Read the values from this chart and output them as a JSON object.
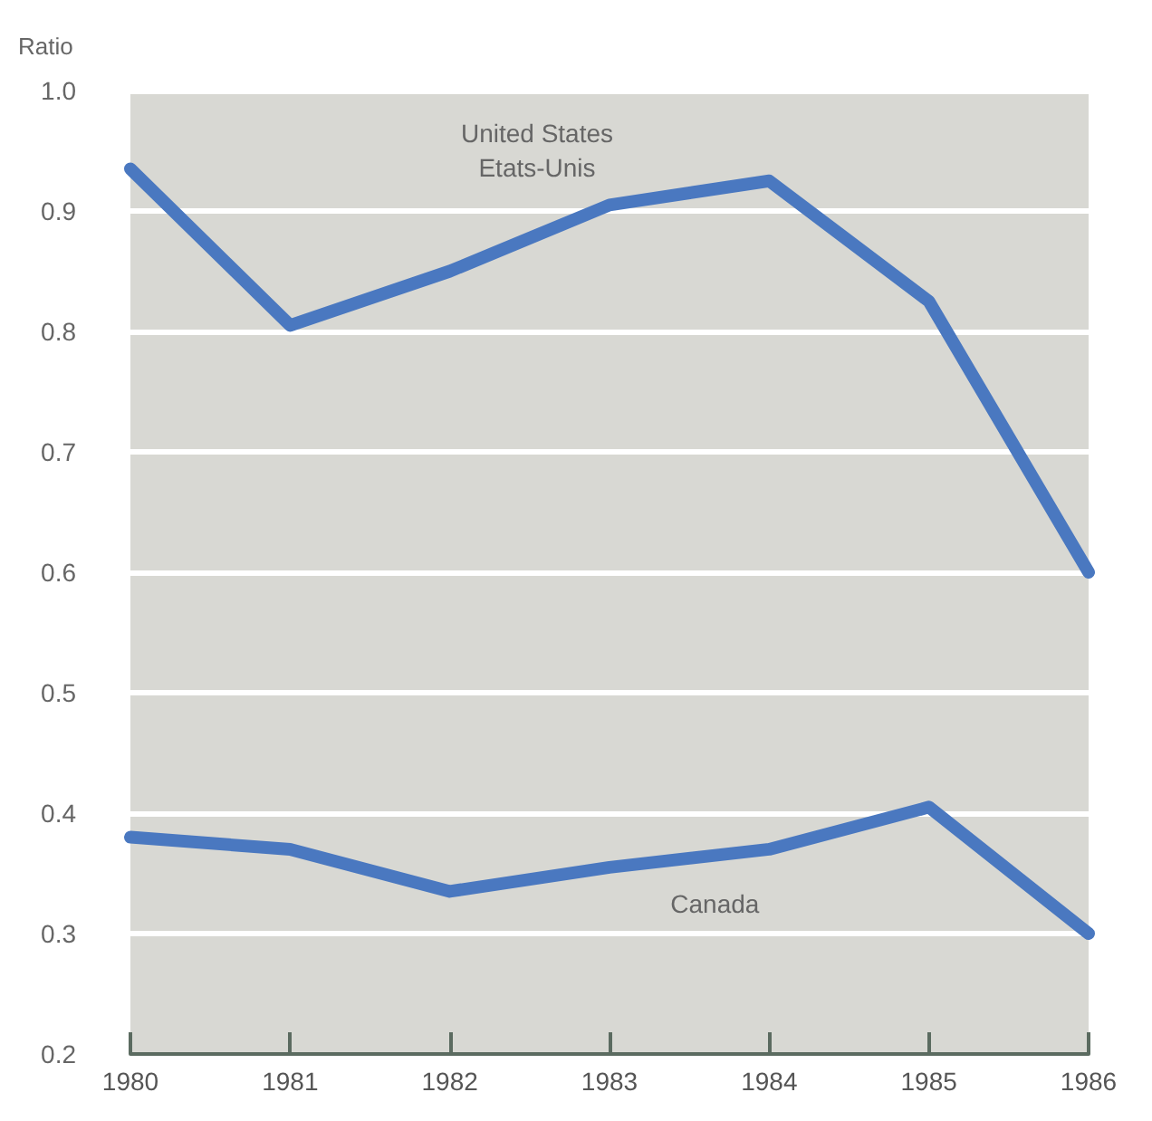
{
  "chart_data": {
    "type": "line",
    "ylabel": "Ratio",
    "categories": [
      "1980",
      "1981",
      "1982",
      "1983",
      "1984",
      "1985",
      "1986"
    ],
    "series": [
      {
        "name": "United States\nEtats-Unis",
        "color": "#4a78c0",
        "values": [
          0.935,
          0.805,
          0.85,
          0.905,
          0.925,
          0.825,
          0.6
        ]
      },
      {
        "name": "Canada",
        "color": "#4a78c0",
        "values": [
          0.38,
          0.37,
          0.335,
          0.355,
          0.37,
          0.405,
          0.3
        ]
      }
    ],
    "ylim": [
      0.2,
      1.0
    ],
    "yticks": [
      0.2,
      0.3,
      0.4,
      0.5,
      0.6,
      0.7,
      0.8,
      0.9,
      {
        "value": 1.0,
        "label": "1.0"
      }
    ],
    "grid": "y",
    "legend": false,
    "line_style": "solid"
  }
}
